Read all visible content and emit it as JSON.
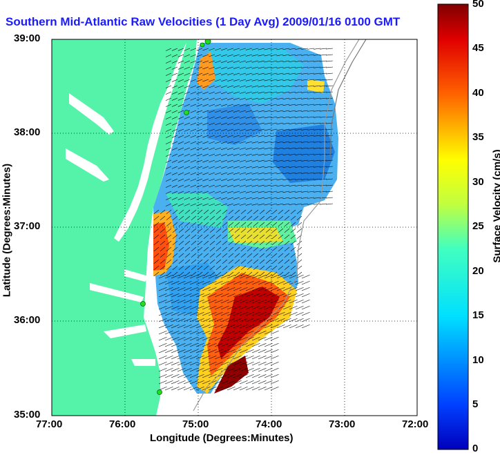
{
  "title": "Southern Mid-Atlantic Raw Velocities (1 Day Avg) 2009/01/16 0100 GMT",
  "x_axis": {
    "label": "Longitude (Degrees:Minutes)",
    "ticks": [
      "77:00",
      "76:00",
      "75:00",
      "74:00",
      "73:00",
      "72:00"
    ]
  },
  "y_axis": {
    "label": "Latitude (Degrees:Minutes)",
    "ticks": [
      "39:00",
      "38:00",
      "37:00",
      "36:00",
      "35:00"
    ]
  },
  "colorbar": {
    "label": "Surface Velocity (cm/s)",
    "ticks": [
      "50",
      "45",
      "40",
      "35",
      "30",
      "25",
      "20",
      "15",
      "10",
      "5",
      "0"
    ],
    "range": [
      0,
      50
    ],
    "colormap": "jet"
  },
  "colors": {
    "land": "#55f2aa",
    "title": "#1a1aff",
    "station": "#22dd22"
  },
  "map": {
    "lon_range": [
      -77,
      -72
    ],
    "lat_range": [
      35,
      39
    ],
    "grid": "dotted",
    "stations": "green markers along coast"
  }
}
